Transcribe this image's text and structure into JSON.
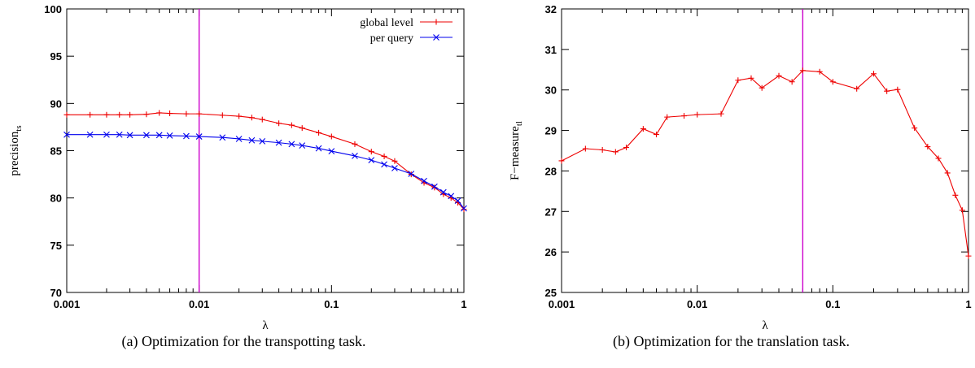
{
  "chart_data": [
    {
      "type": "line",
      "caption": "(a)  Optimization for the transpotting task.",
      "xlabel": "λ",
      "ylabel_main": "precision",
      "ylabel_sub": "ts",
      "xscale": "log",
      "xlim": [
        0.001,
        1
      ],
      "ylim": [
        70,
        100
      ],
      "xticks": [
        0.001,
        0.01,
        0.1,
        1
      ],
      "xtick_labels": [
        "0.001",
        "0.01",
        "0.1",
        "1"
      ],
      "yticks": [
        70,
        75,
        80,
        85,
        90,
        95,
        100
      ],
      "ytick_labels": [
        "70",
        "75",
        "80",
        "85",
        "90",
        "95",
        "100"
      ],
      "vline": {
        "x": 0.01,
        "color": "#cc00cc"
      },
      "legend_position": "top-right",
      "series": [
        {
          "name": "global level",
          "color": "#ee0000",
          "marker": "+",
          "x": [
            0.001,
            0.0015,
            0.002,
            0.0025,
            0.003,
            0.004,
            0.005,
            0.006,
            0.008,
            0.01,
            0.015,
            0.02,
            0.025,
            0.03,
            0.04,
            0.05,
            0.06,
            0.08,
            0.1,
            0.15,
            0.2,
            0.25,
            0.3,
            0.4,
            0.5,
            0.6,
            0.7,
            0.8,
            0.9,
            1.0
          ],
          "y": [
            88.8,
            88.8,
            88.8,
            88.8,
            88.8,
            88.85,
            89.0,
            88.95,
            88.9,
            88.9,
            88.75,
            88.65,
            88.5,
            88.3,
            87.9,
            87.7,
            87.4,
            86.9,
            86.5,
            85.7,
            84.9,
            84.4,
            83.9,
            82.5,
            81.6,
            81.1,
            80.4,
            80.0,
            79.5,
            78.8
          ]
        },
        {
          "name": "per query",
          "color": "#0000ee",
          "marker": "x",
          "x": [
            0.001,
            0.0015,
            0.002,
            0.0025,
            0.003,
            0.004,
            0.005,
            0.006,
            0.008,
            0.01,
            0.015,
            0.02,
            0.025,
            0.03,
            0.04,
            0.05,
            0.06,
            0.08,
            0.1,
            0.15,
            0.2,
            0.25,
            0.3,
            0.4,
            0.5,
            0.6,
            0.7,
            0.8,
            0.9,
            1.0
          ],
          "y": [
            86.7,
            86.7,
            86.7,
            86.7,
            86.65,
            86.65,
            86.65,
            86.6,
            86.55,
            86.5,
            86.4,
            86.25,
            86.1,
            86.0,
            85.85,
            85.7,
            85.55,
            85.25,
            84.95,
            84.45,
            84.0,
            83.55,
            83.15,
            82.55,
            81.8,
            81.2,
            80.6,
            80.2,
            79.7,
            78.9
          ]
        }
      ]
    },
    {
      "type": "line",
      "caption": "(b)  Optimization for the translation task.",
      "xlabel": "λ",
      "ylabel_main": "F−measure",
      "ylabel_sub": "tl",
      "xscale": "log",
      "xlim": [
        0.001,
        1
      ],
      "ylim": [
        25,
        32
      ],
      "xticks": [
        0.001,
        0.01,
        0.1,
        1
      ],
      "xtick_labels": [
        "0.001",
        "0.01",
        "0.1",
        "1"
      ],
      "yticks": [
        25,
        26,
        27,
        28,
        29,
        30,
        31,
        32
      ],
      "ytick_labels": [
        "25",
        "26",
        "27",
        "28",
        "29",
        "30",
        "31",
        "32"
      ],
      "vline": {
        "x": 0.06,
        "color": "#cc00cc"
      },
      "series": [
        {
          "color": "#ee0000",
          "marker": "+",
          "x": [
            0.001,
            0.0015,
            0.002,
            0.0025,
            0.003,
            0.004,
            0.005,
            0.006,
            0.008,
            0.01,
            0.015,
            0.02,
            0.025,
            0.03,
            0.04,
            0.05,
            0.06,
            0.08,
            0.1,
            0.15,
            0.2,
            0.25,
            0.3,
            0.4,
            0.5,
            0.6,
            0.7,
            0.8,
            0.9,
            1.0
          ],
          "y": [
            28.25,
            28.55,
            28.52,
            28.47,
            28.58,
            29.04,
            28.9,
            29.33,
            29.36,
            29.39,
            29.41,
            30.24,
            30.29,
            30.05,
            30.35,
            30.2,
            30.48,
            30.45,
            30.2,
            30.03,
            30.4,
            29.97,
            30.01,
            29.06,
            28.6,
            28.31,
            27.95,
            27.4,
            27.03,
            25.9
          ]
        }
      ]
    }
  ]
}
